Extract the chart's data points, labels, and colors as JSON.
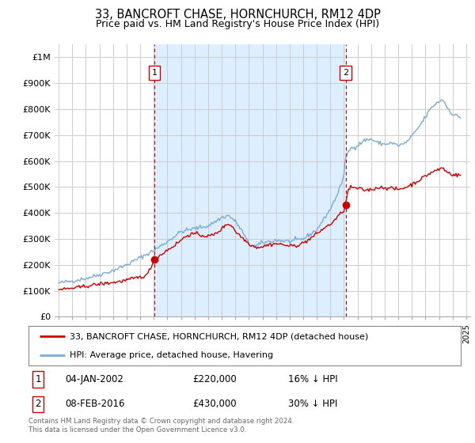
{
  "title": "33, BANCROFT CHASE, HORNCHURCH, RM12 4DP",
  "subtitle": "Price paid vs. HM Land Registry's House Price Index (HPI)",
  "legend_line1": "33, BANCROFT CHASE, HORNCHURCH, RM12 4DP (detached house)",
  "legend_line2": "HPI: Average price, detached house, Havering",
  "annotation1_date": "04-JAN-2002",
  "annotation1_price": "£220,000",
  "annotation1_hpi": "16% ↓ HPI",
  "annotation2_date": "08-FEB-2016",
  "annotation2_price": "£430,000",
  "annotation2_hpi": "30% ↓ HPI",
  "footer1": "Contains HM Land Registry data © Crown copyright and database right 2024.",
  "footer2": "This data is licensed under the Open Government Licence v3.0.",
  "price_color": "#cc0000",
  "hpi_color": "#7aabdb",
  "vline_color": "#cc0000",
  "shade_color": "#ddeeff",
  "background_color": "#ffffff",
  "grid_color": "#cccccc",
  "ylim": [
    0,
    1050000
  ],
  "yticks": [
    0,
    100000,
    200000,
    300000,
    400000,
    500000,
    600000,
    700000,
    800000,
    900000,
    1000000
  ],
  "ytick_labels": [
    "£0",
    "£100K",
    "£200K",
    "£300K",
    "£400K",
    "£500K",
    "£600K",
    "£700K",
    "£800K",
    "£900K",
    "£1M"
  ],
  "purchase1_year": 2002.04,
  "purchase1_price": 220000,
  "purchase2_year": 2016.12,
  "purchase2_price": 430000,
  "xlim_left": 1994.7,
  "xlim_right": 2025.3
}
